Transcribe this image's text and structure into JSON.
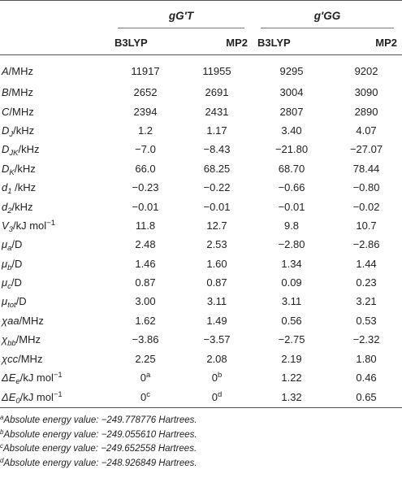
{
  "header": {
    "group1": "gG′T",
    "group2": "g′GG",
    "methods": [
      "B3LYP",
      "MP2",
      "B3LYP",
      "MP2"
    ]
  },
  "rows": [
    {
      "label": "A/MHz",
      "values": [
        "11917",
        "11955",
        "9295",
        "9202"
      ]
    },
    {
      "label": "B/MHz",
      "values": [
        "2652",
        "2691",
        "3004",
        "3090"
      ]
    },
    {
      "label": "C/MHz",
      "values": [
        "2394",
        "2431",
        "2807",
        "2890"
      ]
    },
    {
      "label": "D_J/kHz",
      "values": [
        "1.2",
        "1.17",
        "3.40",
        "4.07"
      ]
    },
    {
      "label": "D_JK/kHz",
      "values": [
        "−7.0",
        "−8.43",
        "−21.80",
        "−27.07"
      ]
    },
    {
      "label": "D_K/kHz",
      "values": [
        "66.0",
        "68.25",
        "68.70",
        "78.44"
      ]
    },
    {
      "label": "d_1 /kHz",
      "values": [
        "−0.23",
        "−0.22",
        "−0.66",
        "−0.80"
      ]
    },
    {
      "label": "d_2/kHz",
      "values": [
        "−0.01",
        "−0.01",
        "−0.01",
        "−0.02"
      ]
    },
    {
      "label": "V_3/kJ mol^−1",
      "values": [
        "11.8",
        "12.7",
        "9.8",
        "10.7"
      ]
    },
    {
      "label": "μ_a/D",
      "values": [
        "2.48",
        "2.53",
        "−2.80",
        "−2.86"
      ]
    },
    {
      "label": "μ_b/D",
      "values": [
        "1.46",
        "1.60",
        "1.34",
        "1.44"
      ]
    },
    {
      "label": "μ_c/D",
      "values": [
        "0.87",
        "0.87",
        "0.09",
        "0.23"
      ]
    },
    {
      "label": "μ_tot/D",
      "values": [
        "3.00",
        "3.11",
        "3.11",
        "3.21"
      ]
    },
    {
      "label": "χaa/MHz",
      "values": [
        "1.62",
        "1.49",
        "0.56",
        "0.53"
      ]
    },
    {
      "label": "χ_bb/MHz",
      "values": [
        "−3.86",
        "−3.57",
        "−2.75",
        "−2.32"
      ]
    },
    {
      "label": "χcc/MHz",
      "values": [
        "2.25",
        "2.08",
        "2.19",
        "1.80"
      ]
    },
    {
      "label": "ΔE_e/kJ mol^−1",
      "values": [
        "0^a",
        "0^b",
        "1.22",
        "0.46"
      ]
    },
    {
      "label": "ΔE_0/kJ mol^−1",
      "values": [
        "0^c",
        "0^d",
        "1.32",
        "0.65"
      ]
    }
  ],
  "footnotes": [
    {
      "mark": "a",
      "text": "Absolute energy value: −249.778776 Hartrees."
    },
    {
      "mark": "b",
      "text": "Absolute energy value: −249.055610 Hartrees."
    },
    {
      "mark": "c",
      "text": "Absolute energy value: −249.652558 Hartrees."
    },
    {
      "mark": "d",
      "text": "Absolute energy value: −248.926849 Hartrees."
    }
  ]
}
